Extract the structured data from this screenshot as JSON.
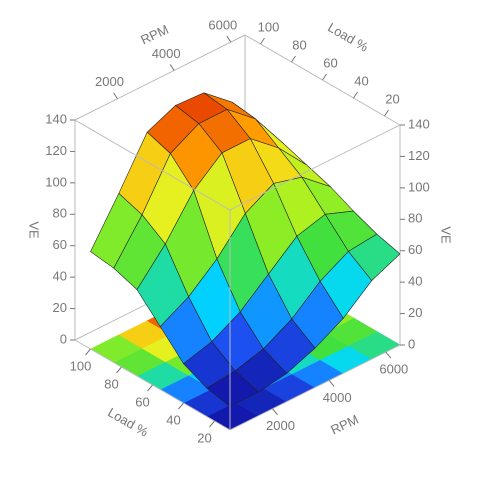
{
  "chart_data": {
    "type": "surface3d",
    "x_label": "RPM",
    "y_label": "Load %",
    "z_label": "VE",
    "x": [
      500,
      1500,
      2500,
      3500,
      4500,
      5500,
      6500
    ],
    "y": [
      10,
      25,
      40,
      55,
      70,
      85,
      100
    ],
    "z": [
      [
        15,
        15,
        18,
        25,
        35,
        50,
        58
      ],
      [
        18,
        20,
        25,
        35,
        50,
        60,
        62
      ],
      [
        25,
        30,
        40,
        55,
        70,
        75,
        68
      ],
      [
        40,
        50,
        65,
        85,
        95,
        90,
        75
      ],
      [
        55,
        75,
        100,
        115,
        115,
        100,
        80
      ],
      [
        60,
        85,
        115,
        125,
        125,
        110,
        85
      ],
      [
        62,
        90,
        120,
        128,
        127,
        112,
        88
      ]
    ],
    "xlim": [
      500,
      6500
    ],
    "xticks": [
      2000,
      4000,
      6000
    ],
    "ylim": [
      10,
      110
    ],
    "yticks": [
      20,
      40,
      60,
      80,
      100
    ],
    "zlim": [
      0,
      140
    ],
    "zticks": [
      0,
      20,
      40,
      60,
      80,
      100,
      120,
      140
    ],
    "colormap": [
      "#1010a0",
      "#1e5bff",
      "#00d8ff",
      "#40e040",
      "#a0f020",
      "#f0f020",
      "#ffa000",
      "#e84000"
    ],
    "floor_projection": true
  }
}
